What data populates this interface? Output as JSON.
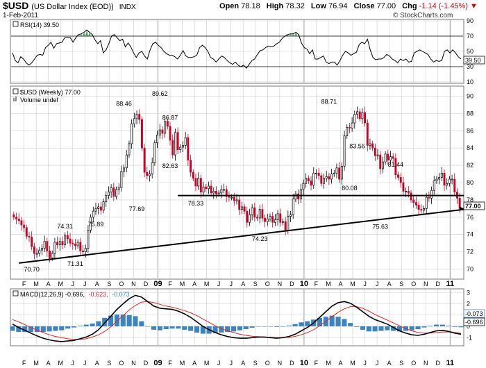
{
  "header": {
    "symbol": "$USD",
    "name": "(US Dollar Index (EOD))",
    "exchange": "INDX",
    "date": "1-Feb-2011",
    "open_label": "Open",
    "open": "78.18",
    "high_label": "High",
    "high": "78.32",
    "low_label": "Low",
    "low": "76.94",
    "close_label": "Close",
    "close": "77.00",
    "chg_label": "Chg",
    "chg": "-1.14 (-1.45%)",
    "chg_icon": "down-arrow-icon",
    "credit": "© StockCharts.com"
  },
  "rsi": {
    "label": "RSI(14) 39.50",
    "current": "39.50",
    "levels": [
      10,
      30,
      50,
      70,
      90
    ],
    "ref_lines": [
      30,
      70
    ]
  },
  "price": {
    "label": "$USD (Weekly) 77.00",
    "volume_label": "Volume undef",
    "current_label": "77.00",
    "y_ticks": [
      70,
      72,
      74,
      76,
      78,
      80,
      82,
      84,
      86,
      88,
      90
    ],
    "ylim": [
      69,
      91
    ],
    "resistance_level": 78.5,
    "support_line": {
      "from": [
        2,
        70.7
      ],
      "to": [
        162,
        76.9
      ]
    },
    "annotations": [
      {
        "text": "70.70",
        "x": 7,
        "y": 70.7,
        "pos": "below"
      },
      {
        "text": "74.31",
        "x": 20,
        "y": 74.31,
        "pos": "above"
      },
      {
        "text": "71.31",
        "x": 24,
        "y": 71.31,
        "pos": "below"
      },
      {
        "text": "75.89",
        "x": 32,
        "y": 75.89,
        "pos": "below"
      },
      {
        "text": "88.46",
        "x": 43,
        "y": 88.46,
        "pos": "above"
      },
      {
        "text": "77.69",
        "x": 48,
        "y": 77.69,
        "pos": "below"
      },
      {
        "text": "89.62",
        "x": 57,
        "y": 89.62,
        "pos": "above"
      },
      {
        "text": "86.87",
        "x": 61,
        "y": 86.87,
        "pos": "above"
      },
      {
        "text": "82.63",
        "x": 61,
        "y": 82.63,
        "pos": "below"
      },
      {
        "text": "78.33",
        "x": 71,
        "y": 78.33,
        "pos": "below"
      },
      {
        "text": "74.23",
        "x": 96,
        "y": 74.23,
        "pos": "below"
      },
      {
        "text": "88.71",
        "x": 123,
        "y": 88.71,
        "pos": "above"
      },
      {
        "text": "83.56",
        "x": 134,
        "y": 83.56,
        "pos": "above"
      },
      {
        "text": "80.08",
        "x": 131,
        "y": 80.08,
        "pos": "below"
      },
      {
        "text": "75.63",
        "x": 143,
        "y": 75.63,
        "pos": "below"
      },
      {
        "text": "81.44",
        "x": 149,
        "y": 81.44,
        "pos": "above"
      }
    ]
  },
  "macd": {
    "label_main": "MACD(12,26,9) -0.696,",
    "label_signal": "-0.623,",
    "label_hist": "-0.073",
    "y_ticks": [
      -1,
      0,
      1,
      2,
      3
    ],
    "ylim": [
      -1.6,
      3.2
    ],
    "current_macd": "-0.696",
    "current_hist": "-0.073"
  },
  "x_axis": {
    "labels": [
      "F",
      "M",
      "A",
      "M",
      "J",
      "J",
      "A",
      "S",
      "O",
      "N",
      "D",
      "09",
      "F",
      "M",
      "A",
      "M",
      "J",
      "J",
      "A",
      "S",
      "O",
      "N",
      "D",
      "10",
      "F",
      "M",
      "A",
      "M",
      "J",
      "J",
      "A",
      "S",
      "O",
      "N",
      "D",
      "11"
    ],
    "year_labels": [
      "09",
      "10",
      "11"
    ]
  },
  "colors": {
    "up": "#000000",
    "down": "#cc0022",
    "rsi_fill": "#3d8a4a",
    "rsi_line": "#000000",
    "macd_line": "#000000",
    "signal_line": "#ee2222",
    "histogram": "#3a84c4",
    "grid": "#cccccc"
  },
  "chart_data": [
    {
      "type": "line",
      "title": "RSI(14) 39.50",
      "ylim": [
        10,
        90
      ],
      "reference_lines": [
        30,
        70
      ],
      "values": [
        48,
        38,
        35,
        43,
        40,
        35,
        32,
        35,
        40,
        45,
        46,
        45,
        55,
        58,
        62,
        54,
        60,
        61,
        62,
        68,
        68,
        68,
        62,
        68,
        72,
        73,
        75,
        78,
        75,
        72,
        65,
        60,
        64,
        48,
        52,
        60,
        70,
        72,
        68,
        64,
        66,
        56,
        61,
        56,
        48,
        42,
        48,
        50,
        44,
        40,
        52,
        60,
        62,
        58,
        55,
        50,
        47,
        45,
        45,
        43,
        40,
        45,
        51,
        44,
        42,
        42,
        43,
        45,
        55,
        58,
        55,
        50,
        42,
        40,
        36,
        40,
        44,
        42,
        38,
        35,
        33,
        36,
        32,
        30,
        32,
        28,
        33,
        38,
        40,
        46,
        51,
        52,
        55,
        57,
        56,
        57,
        60,
        62,
        67,
        70,
        72,
        73,
        73,
        75,
        72,
        61,
        55,
        53,
        47,
        52,
        40,
        40,
        42,
        44,
        36,
        34,
        36,
        36,
        32,
        38,
        45,
        50,
        48,
        45,
        47,
        49,
        59,
        62,
        60,
        66,
        52,
        42,
        39,
        40,
        40,
        42,
        46,
        44,
        40,
        38,
        35,
        40,
        38,
        40,
        36,
        37,
        48,
        50,
        52,
        50,
        48,
        46,
        40,
        36,
        38,
        37,
        38,
        50,
        52,
        48,
        52,
        48,
        43,
        40
      ]
    },
    {
      "type": "candlestick",
      "title": "$USD (Weekly) 77.00",
      "ylim": [
        69,
        91
      ],
      "series": [
        {
          "name": "close",
          "values": [
            76.0,
            75.8,
            75.6,
            75.1,
            74.8,
            73.8,
            73.7,
            72.6,
            71.8,
            71.8,
            72.2,
            72.4,
            73.2,
            72.1,
            71.3,
            71.8,
            73.1,
            72.8,
            73.2,
            72.8,
            73.9,
            73.5,
            73.0,
            72.9,
            72.7,
            73.1,
            72.1,
            72.0,
            72.4,
            74.5,
            76.0,
            76.7,
            77.0,
            77.2,
            76.8,
            77.8,
            78.5,
            78.9,
            79.4,
            78.4,
            79.2,
            79.4,
            81.3,
            81.7,
            83.2,
            84.5,
            86.8,
            87.4,
            87.9,
            87.3,
            84.0,
            81.2,
            80.8,
            81.0,
            82.3,
            84.6,
            85.5,
            86.1,
            85.7,
            87.1,
            86.5,
            84.9,
            83.2,
            85.8,
            83.8,
            84.1,
            84.3,
            85.2,
            82.6,
            81.2,
            80.5,
            79.6,
            80.5,
            78.9,
            79.5,
            79.3,
            79.6,
            78.8,
            79.0,
            78.7,
            78.8,
            79.2,
            79.2,
            78.4,
            78.3,
            78.3,
            77.9,
            78.0,
            76.9,
            77.2,
            76.7,
            75.4,
            76.3,
            77.1,
            76.0,
            75.9,
            76.9,
            75.9,
            75.5,
            75.8,
            76.1,
            75.4,
            75.7,
            76.4,
            75.4,
            75.5,
            74.5,
            76.1,
            76.3,
            78.1,
            78.7,
            78.1,
            79.2,
            79.9,
            80.5,
            80.2,
            79.7,
            81.1,
            81.1,
            80.8,
            79.9,
            80.5,
            80.7,
            80.4,
            81.0,
            81.1,
            81.7,
            80.4,
            81.9,
            85.4,
            86.4,
            86.3,
            86.9,
            87.9,
            88.2,
            87.4,
            88.1,
            86.9,
            84.3,
            84.5,
            84.0,
            83.1,
            83.2,
            81.6,
            82.4,
            83.3,
            82.6,
            83.0,
            82.8,
            80.9,
            80.6,
            80.0,
            79.0,
            79.0,
            78.8,
            78.0,
            77.7,
            77.4,
            76.9,
            76.8,
            77.0,
            78.3,
            78.2,
            79.1,
            80.2,
            80.4,
            80.6,
            81.1,
            79.7,
            79.9,
            80.4,
            80.4,
            78.9,
            78.2,
            77.0
          ]
        }
      ]
    },
    {
      "type": "line",
      "title": "MACD(12,26,9) -0.696, -0.623, -0.073",
      "ylim": [
        -1.6,
        3.2
      ],
      "series": [
        {
          "name": "MACD(12,26,9)",
          "values": [
            0.2,
            -0.1,
            -0.35,
            -0.6,
            -0.85,
            -1.05,
            -1.2,
            -1.3,
            -1.35,
            -1.3,
            -1.25,
            -1.1,
            -0.95,
            -0.7,
            -0.3,
            0.3,
            0.9,
            1.5,
            2.0,
            2.45,
            2.75,
            2.6,
            2.2,
            1.8,
            1.6,
            1.55,
            1.5,
            1.35,
            1.1,
            0.8,
            0.4,
            0.0,
            -0.3,
            -0.55,
            -0.75,
            -0.9,
            -1.0,
            -1.05,
            -1.05,
            -1.0,
            -0.95,
            -0.95,
            -1.0,
            -1.05,
            -1.0,
            -0.9,
            -0.7,
            -0.4,
            -0.1,
            0.3,
            0.8,
            1.3,
            1.8,
            2.1,
            2.2,
            2.05,
            1.7,
            1.3,
            0.9,
            0.6,
            0.4,
            0.2,
            -0.1,
            -0.4,
            -0.6,
            -0.75,
            -0.8,
            -0.7,
            -0.55,
            -0.4,
            -0.35,
            -0.45,
            -0.6,
            -0.7
          ]
        },
        {
          "name": "signal",
          "values": [
            0.6,
            0.4,
            0.15,
            -0.1,
            -0.35,
            -0.55,
            -0.75,
            -0.9,
            -1.0,
            -1.1,
            -1.15,
            -1.15,
            -1.1,
            -0.95,
            -0.75,
            -0.45,
            -0.05,
            0.45,
            0.95,
            1.45,
            1.85,
            2.15,
            2.2,
            2.1,
            1.95,
            1.8,
            1.7,
            1.55,
            1.4,
            1.2,
            0.95,
            0.65,
            0.35,
            0.05,
            -0.2,
            -0.4,
            -0.55,
            -0.7,
            -0.8,
            -0.88,
            -0.92,
            -0.95,
            -0.97,
            -1.0,
            -1.0,
            -0.97,
            -0.9,
            -0.75,
            -0.55,
            -0.3,
            0.05,
            0.45,
            0.85,
            1.25,
            1.55,
            1.75,
            1.75,
            1.6,
            1.35,
            1.05,
            0.8,
            0.55,
            0.3,
            0.05,
            -0.2,
            -0.4,
            -0.55,
            -0.6,
            -0.6,
            -0.55,
            -0.5,
            -0.5,
            -0.55,
            -0.62
          ]
        },
        {
          "name": "histogram",
          "values": [
            -0.4,
            -0.5,
            -0.5,
            -0.5,
            -0.5,
            -0.5,
            -0.45,
            -0.4,
            -0.35,
            -0.2,
            -0.1,
            0.05,
            0.15,
            0.25,
            0.45,
            0.75,
            0.95,
            1.05,
            1.05,
            1.0,
            0.9,
            0.45,
            0.0,
            -0.3,
            -0.35,
            -0.25,
            -0.2,
            -0.2,
            -0.3,
            -0.4,
            -0.55,
            -0.65,
            -0.65,
            -0.6,
            -0.55,
            -0.5,
            -0.45,
            -0.35,
            -0.25,
            -0.12,
            -0.03,
            0.0,
            -0.03,
            -0.05,
            0.0,
            0.07,
            0.2,
            0.35,
            0.45,
            0.6,
            0.75,
            0.85,
            0.95,
            0.85,
            0.65,
            0.3,
            -0.05,
            -0.3,
            -0.45,
            -0.45,
            -0.4,
            -0.35,
            -0.4,
            -0.45,
            -0.4,
            -0.35,
            -0.25,
            -0.1,
            0.05,
            0.15,
            0.15,
            0.05,
            -0.05,
            -0.08
          ]
        }
      ]
    }
  ]
}
